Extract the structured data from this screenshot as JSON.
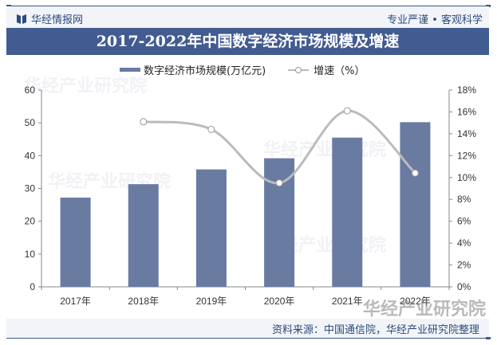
{
  "header": {
    "brand": "华经情报网",
    "slogan": "专业严谨 • 客观科学",
    "title": "2017-2022年中国数字经济市场规模及增速"
  },
  "legend": {
    "bar_label": "数字经济市场规模(万亿元)",
    "line_label": "增速（%）"
  },
  "footer": {
    "source": "资料来源：中国通信院，华经产业研究院整理",
    "watermark": "华经产业研究院"
  },
  "colors": {
    "bar": "#6a7ba2",
    "line": "#bbbbbb",
    "title_bg": "#425c91",
    "brand_text": "#2d4a7c"
  },
  "chart_data": {
    "type": "bar",
    "title": "2017-2022年中国数字经济市场规模及增速",
    "categories": [
      "2017年",
      "2018年",
      "2019年",
      "2020年",
      "2021年",
      "2022年"
    ],
    "series": [
      {
        "name": "数字经济市场规模(万亿元)",
        "type": "bar",
        "axis": "left",
        "values": [
          27.2,
          31.3,
          35.8,
          39.2,
          45.5,
          50.2
        ]
      },
      {
        "name": "增速（%）",
        "type": "line",
        "axis": "right",
        "values": [
          null,
          15.1,
          14.4,
          9.5,
          16.1,
          10.4
        ]
      }
    ],
    "ylabel_left": "",
    "ylim_left": [
      0,
      60
    ],
    "yticks_left": [
      "0",
      "10",
      "20",
      "30",
      "40",
      "50",
      "60"
    ],
    "ylabel_right": "",
    "ylim_right": [
      0,
      18
    ],
    "yticks_right": [
      "0%",
      "2%",
      "4%",
      "6%",
      "8%",
      "10%",
      "12%",
      "14%",
      "16%",
      "18%"
    ],
    "legend_position": "top",
    "grid": false
  }
}
